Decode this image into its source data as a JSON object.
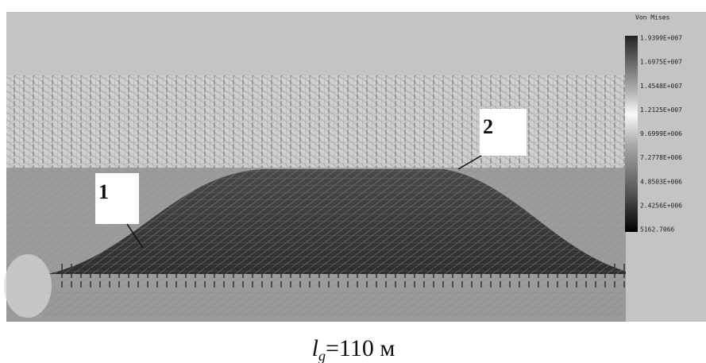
{
  "legend": {
    "title": "Von Mises",
    "labels": [
      "1.9399E+007",
      "1.6975E+007",
      "1.4548E+007",
      "1.2125E+007",
      "9.6999E+006",
      "7.2778E+006",
      "4.8503E+006",
      "2.4256E+006",
      "5162.7066"
    ]
  },
  "callouts": [
    "1",
    "2"
  ],
  "caption": {
    "symbol": "l",
    "subscript": "g",
    "text": "=110 м"
  }
}
